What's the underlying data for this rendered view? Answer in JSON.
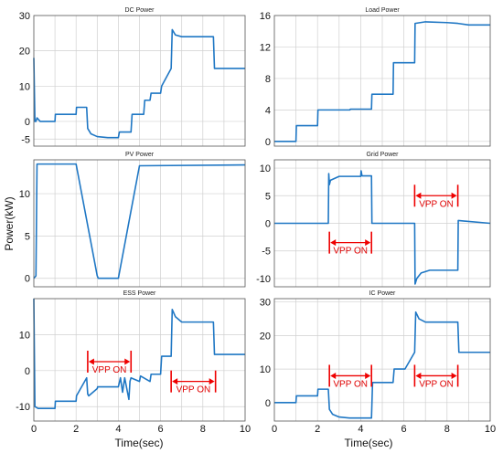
{
  "figure": {
    "ylabel": "Power(kW)",
    "xlabel": "Time(sec)"
  },
  "colors": {
    "line": "#1f77c4",
    "annotation": "#ee0000",
    "grid": "#d0d0d0",
    "axes": "#555555"
  },
  "chart_data": [
    {
      "type": "line",
      "id": "dc",
      "title": "DC Power",
      "xlim": [
        0,
        10
      ],
      "ylim": [
        -7,
        30
      ],
      "yticks": [
        -5,
        0,
        10,
        20,
        30
      ],
      "xticks": [],
      "x": [
        0,
        0.05,
        0.1,
        0.15,
        0.3,
        1,
        1.02,
        2,
        2.02,
        2.5,
        2.55,
        2.7,
        3,
        3.5,
        4,
        4.05,
        4.6,
        4.65,
        5.2,
        5.25,
        5.5,
        5.55,
        6,
        6.05,
        6.5,
        6.55,
        6.7,
        7,
        7.5,
        8.5,
        8.55,
        9,
        10
      ],
      "y": [
        18,
        0,
        0,
        1,
        0,
        0,
        2,
        2,
        4,
        4,
        -2,
        -3.5,
        -4.3,
        -4.6,
        -4.6,
        -3,
        -3,
        2,
        2,
        6,
        6,
        8,
        8,
        10,
        15,
        26,
        24.5,
        24,
        24,
        24,
        15,
        15,
        15
      ],
      "annotations": []
    },
    {
      "type": "line",
      "id": "load",
      "title": "Load Power",
      "xlim": [
        0,
        10
      ],
      "ylim": [
        -0.6,
        16
      ],
      "yticks": [
        0,
        4,
        8,
        12,
        16
      ],
      "xticks": [],
      "x": [
        0,
        1,
        1.02,
        2,
        2.02,
        3.5,
        3.52,
        4.5,
        4.52,
        5.5,
        5.52,
        6.5,
        6.52,
        7,
        8,
        8.5,
        9,
        10
      ],
      "y": [
        0,
        0,
        2,
        2,
        4,
        4,
        4.1,
        4.1,
        6,
        6,
        10,
        10,
        15,
        15.2,
        15.1,
        15,
        14.8,
        14.8
      ],
      "annotations": []
    },
    {
      "type": "line",
      "id": "pv",
      "title": "PV Power",
      "xlim": [
        0,
        10
      ],
      "ylim": [
        -1,
        14
      ],
      "yticks": [
        0,
        5,
        10
      ],
      "xticks": [],
      "x": [
        0,
        0.1,
        0.15,
        0.25,
        2,
        3,
        3.05,
        4,
        5,
        10
      ],
      "y": [
        0,
        0.3,
        13.5,
        13.5,
        13.5,
        0.3,
        0,
        0,
        13.3,
        13.4
      ],
      "annotations": []
    },
    {
      "type": "line",
      "id": "grid",
      "title": "Grid Power",
      "xlim": [
        0,
        10
      ],
      "ylim": [
        -11.5,
        11.5
      ],
      "yticks": [
        -10,
        -5,
        0,
        5,
        10
      ],
      "xticks": [],
      "x": [
        0,
        2.5,
        2.52,
        2.55,
        2.6,
        3,
        4.0,
        4.02,
        4.06,
        4.5,
        4.52,
        6.5,
        6.52,
        6.6,
        6.8,
        7.2,
        8.5,
        8.52,
        10
      ],
      "y": [
        0,
        0,
        9,
        7,
        7.8,
        8.5,
        8.5,
        9.5,
        8.6,
        8.6,
        0,
        0,
        -11,
        -10,
        -9,
        -8.5,
        -8.5,
        0.5,
        0
      ],
      "annotations": [
        {
          "label": "VPP ON",
          "from": 2.55,
          "to": 4.5,
          "y": -3.5
        },
        {
          "label": "VPP ON",
          "from": 6.5,
          "to": 8.5,
          "y": 5
        }
      ]
    },
    {
      "type": "line",
      "id": "ess",
      "title": "ESS Power",
      "xlim": [
        0,
        10
      ],
      "ylim": [
        -14,
        20
      ],
      "yticks": [
        -10,
        0,
        10
      ],
      "xticks": [
        0,
        2,
        4,
        6,
        8,
        10
      ],
      "x": [
        0,
        0.05,
        0.2,
        1,
        1.02,
        2,
        2.02,
        2.5,
        2.55,
        2.6,
        3,
        3.02,
        3.8,
        4,
        4.1,
        4.2,
        4.3,
        4.5,
        4.55,
        4.6,
        5,
        5.05,
        5.5,
        5.55,
        6,
        6.05,
        6.5,
        6.55,
        6.7,
        7,
        8.5,
        8.55,
        10
      ],
      "y": [
        20,
        -10,
        -10.5,
        -10.5,
        -8.5,
        -8.5,
        -7,
        -2,
        -6.5,
        -7,
        -5,
        -4.5,
        -4.5,
        -4.5,
        -2,
        -6,
        -2,
        -8,
        -3,
        -2,
        -3,
        -1.5,
        -3,
        -1,
        -1,
        4,
        4,
        17,
        15,
        13.5,
        13.5,
        4.5,
        4.5
      ],
      "annotations": [
        {
          "label": "VPP ON",
          "from": 2.55,
          "to": 4.6,
          "y": 2.5
        },
        {
          "label": "VPP ON",
          "from": 6.5,
          "to": 8.6,
          "y": -3
        }
      ]
    },
    {
      "type": "line",
      "id": "ic",
      "title": "IC Power",
      "xlim": [
        0,
        10
      ],
      "ylim": [
        -5.5,
        31
      ],
      "yticks": [
        0,
        10,
        20,
        30
      ],
      "xticks": [
        0,
        2,
        4,
        6,
        8,
        10
      ],
      "x": [
        0,
        1,
        1.02,
        2,
        2.02,
        2.5,
        2.55,
        2.7,
        3,
        3.5,
        4.5,
        4.55,
        5.5,
        5.55,
        6,
        6.05,
        6.5,
        6.55,
        6.7,
        7,
        8.5,
        8.55,
        10
      ],
      "y": [
        0,
        0,
        2,
        2,
        4,
        4,
        -2,
        -3.5,
        -4.3,
        -4.6,
        -4.6,
        6,
        6,
        10,
        10,
        10,
        15,
        27,
        25,
        24,
        24,
        15,
        15
      ],
      "annotations": [
        {
          "label": "VPP ON",
          "from": 2.55,
          "to": 4.5,
          "y": 8
        },
        {
          "label": "VPP ON",
          "from": 6.5,
          "to": 8.5,
          "y": 8
        }
      ]
    }
  ]
}
